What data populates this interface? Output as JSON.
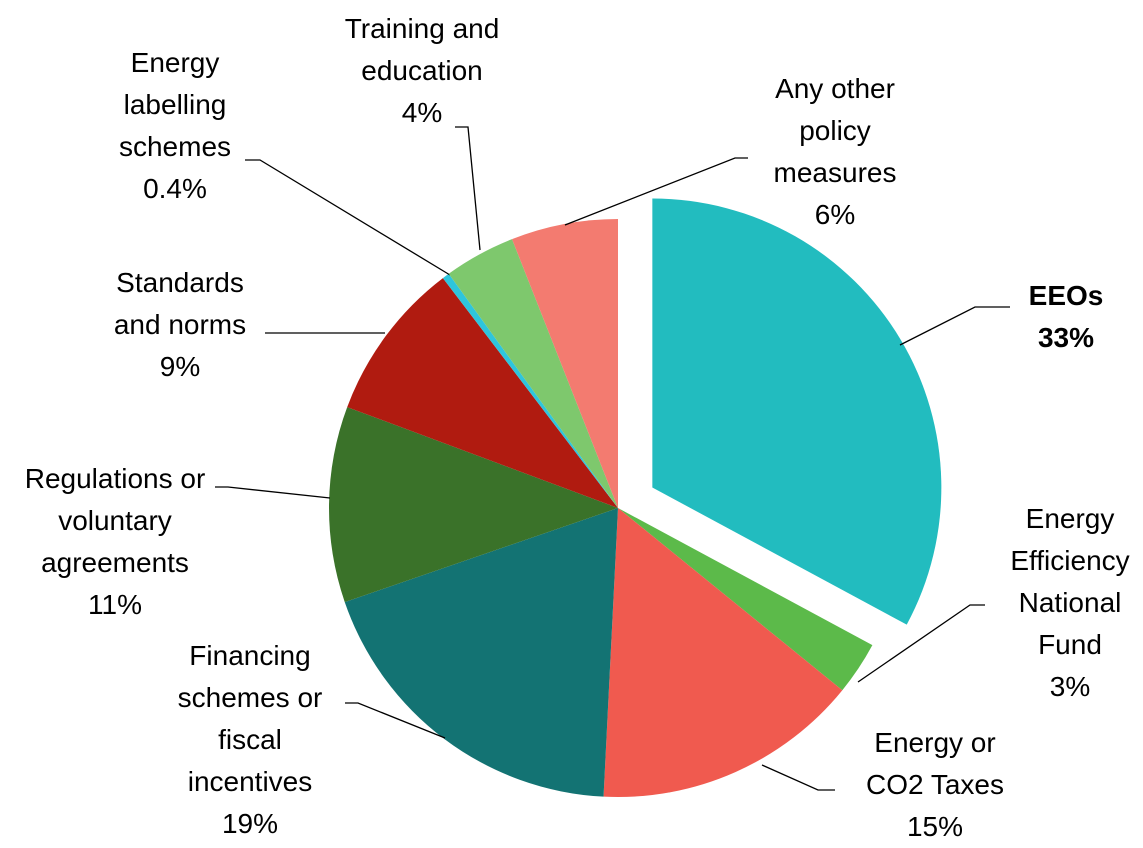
{
  "chart_data": {
    "type": "pie",
    "categories": [
      "EEOs",
      "Energy Efficiency National Fund",
      "Energy or CO2 Taxes",
      "Financing schemes or fiscal incentives",
      "Regulations or voluntary agreements",
      "Standards and norms",
      "Energy labelling schemes",
      "Training and education",
      "Any other policy measures"
    ],
    "values": [
      33,
      3,
      15,
      19,
      11,
      9,
      0.4,
      4,
      6
    ],
    "value_labels": [
      "33%",
      "3%",
      "15%",
      "19%",
      "11%",
      "9%",
      "0.4%",
      "4%",
      "6%"
    ],
    "colors": [
      "#22bcbf",
      "#5cba4a",
      "#f05a4f",
      "#137373",
      "#3a7229",
      "#b01b10",
      "#2ec5dc",
      "#7ec86d",
      "#f37b70"
    ],
    "exploded": "EEOs"
  }
}
